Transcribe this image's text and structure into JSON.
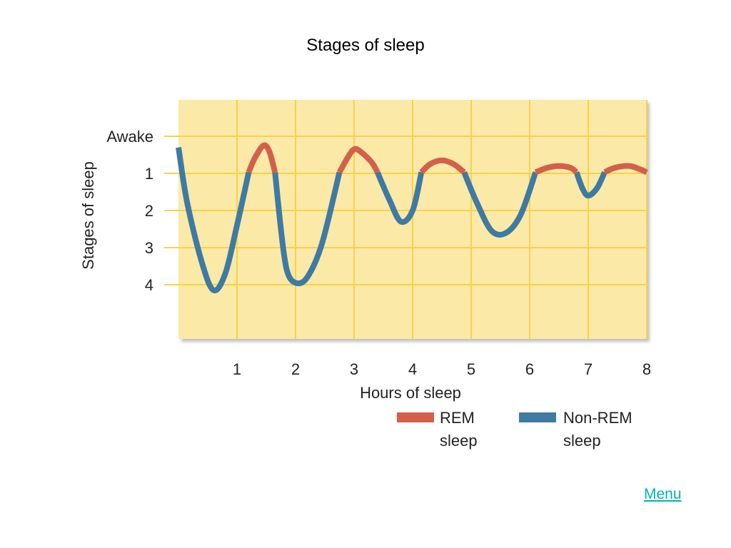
{
  "slide": {
    "title": "Stages of sleep",
    "menu_label": "Menu"
  },
  "colors": {
    "plot_background": "#fbe9a8",
    "grid": "#f7d24a",
    "rem": "#d2604a",
    "non_rem": "#3f7aa3",
    "menu_link": "#00b3b3"
  },
  "chart_data": {
    "type": "line",
    "xlabel": "Hours of  sleep",
    "ylabel": "Stages of sleep",
    "xlim": [
      0,
      8
    ],
    "x_ticks": [
      "1",
      "2",
      "3",
      "4",
      "5",
      "6",
      "7",
      "8"
    ],
    "y_ticks": [
      {
        "value": 0,
        "label": "Awake"
      },
      {
        "value": 1,
        "label": "1"
      },
      {
        "value": 2,
        "label": "2"
      },
      {
        "value": 3,
        "label": "3"
      },
      {
        "value": 4,
        "label": "4"
      }
    ],
    "y_inverted": true,
    "grid": true,
    "legend_position": "bottom-right",
    "series": [
      {
        "name_lines": [
          "REM",
          "sleep"
        ],
        "color": "#d2604a",
        "segments": [
          [
            [
              1.2,
              0.97
            ],
            [
              1.3,
              0.6
            ],
            [
              1.45,
              0.25
            ],
            [
              1.55,
              0.4
            ],
            [
              1.65,
              0.97
            ]
          ],
          [
            [
              2.75,
              0.97
            ],
            [
              2.9,
              0.55
            ],
            [
              3.0,
              0.35
            ],
            [
              3.1,
              0.4
            ],
            [
              3.3,
              0.7
            ],
            [
              3.4,
              0.97
            ]
          ],
          [
            [
              4.15,
              0.97
            ],
            [
              4.3,
              0.75
            ],
            [
              4.5,
              0.65
            ],
            [
              4.7,
              0.75
            ],
            [
              4.88,
              0.97
            ]
          ],
          [
            [
              6.1,
              0.97
            ],
            [
              6.3,
              0.85
            ],
            [
              6.5,
              0.8
            ],
            [
              6.7,
              0.85
            ],
            [
              6.8,
              0.97
            ]
          ],
          [
            [
              7.28,
              0.97
            ],
            [
              7.45,
              0.85
            ],
            [
              7.7,
              0.8
            ],
            [
              7.9,
              0.9
            ],
            [
              8.0,
              0.97
            ]
          ]
        ]
      },
      {
        "name_lines": [
          "Non-REM",
          "sleep"
        ],
        "color": "#3f7aa3",
        "segments": [
          [
            [
              0.0,
              0.3
            ],
            [
              0.15,
              1.8
            ],
            [
              0.4,
              3.4
            ],
            [
              0.6,
              4.15
            ],
            [
              0.8,
              3.7
            ],
            [
              1.0,
              2.4
            ],
            [
              1.2,
              0.97
            ]
          ],
          [
            [
              1.65,
              0.97
            ],
            [
              1.75,
              2.5
            ],
            [
              1.85,
              3.6
            ],
            [
              2.0,
              3.95
            ],
            [
              2.2,
              3.8
            ],
            [
              2.45,
              2.9
            ],
            [
              2.75,
              0.97
            ]
          ],
          [
            [
              3.4,
              0.97
            ],
            [
              3.6,
              1.7
            ],
            [
              3.8,
              2.3
            ],
            [
              4.0,
              2.0
            ],
            [
              4.15,
              0.97
            ]
          ],
          [
            [
              4.88,
              0.97
            ],
            [
              5.1,
              1.8
            ],
            [
              5.35,
              2.55
            ],
            [
              5.6,
              2.6
            ],
            [
              5.85,
              2.1
            ],
            [
              6.1,
              0.97
            ]
          ],
          [
            [
              6.8,
              0.97
            ],
            [
              6.9,
              1.4
            ],
            [
              7.0,
              1.6
            ],
            [
              7.15,
              1.4
            ],
            [
              7.28,
              0.97
            ]
          ]
        ]
      }
    ]
  }
}
